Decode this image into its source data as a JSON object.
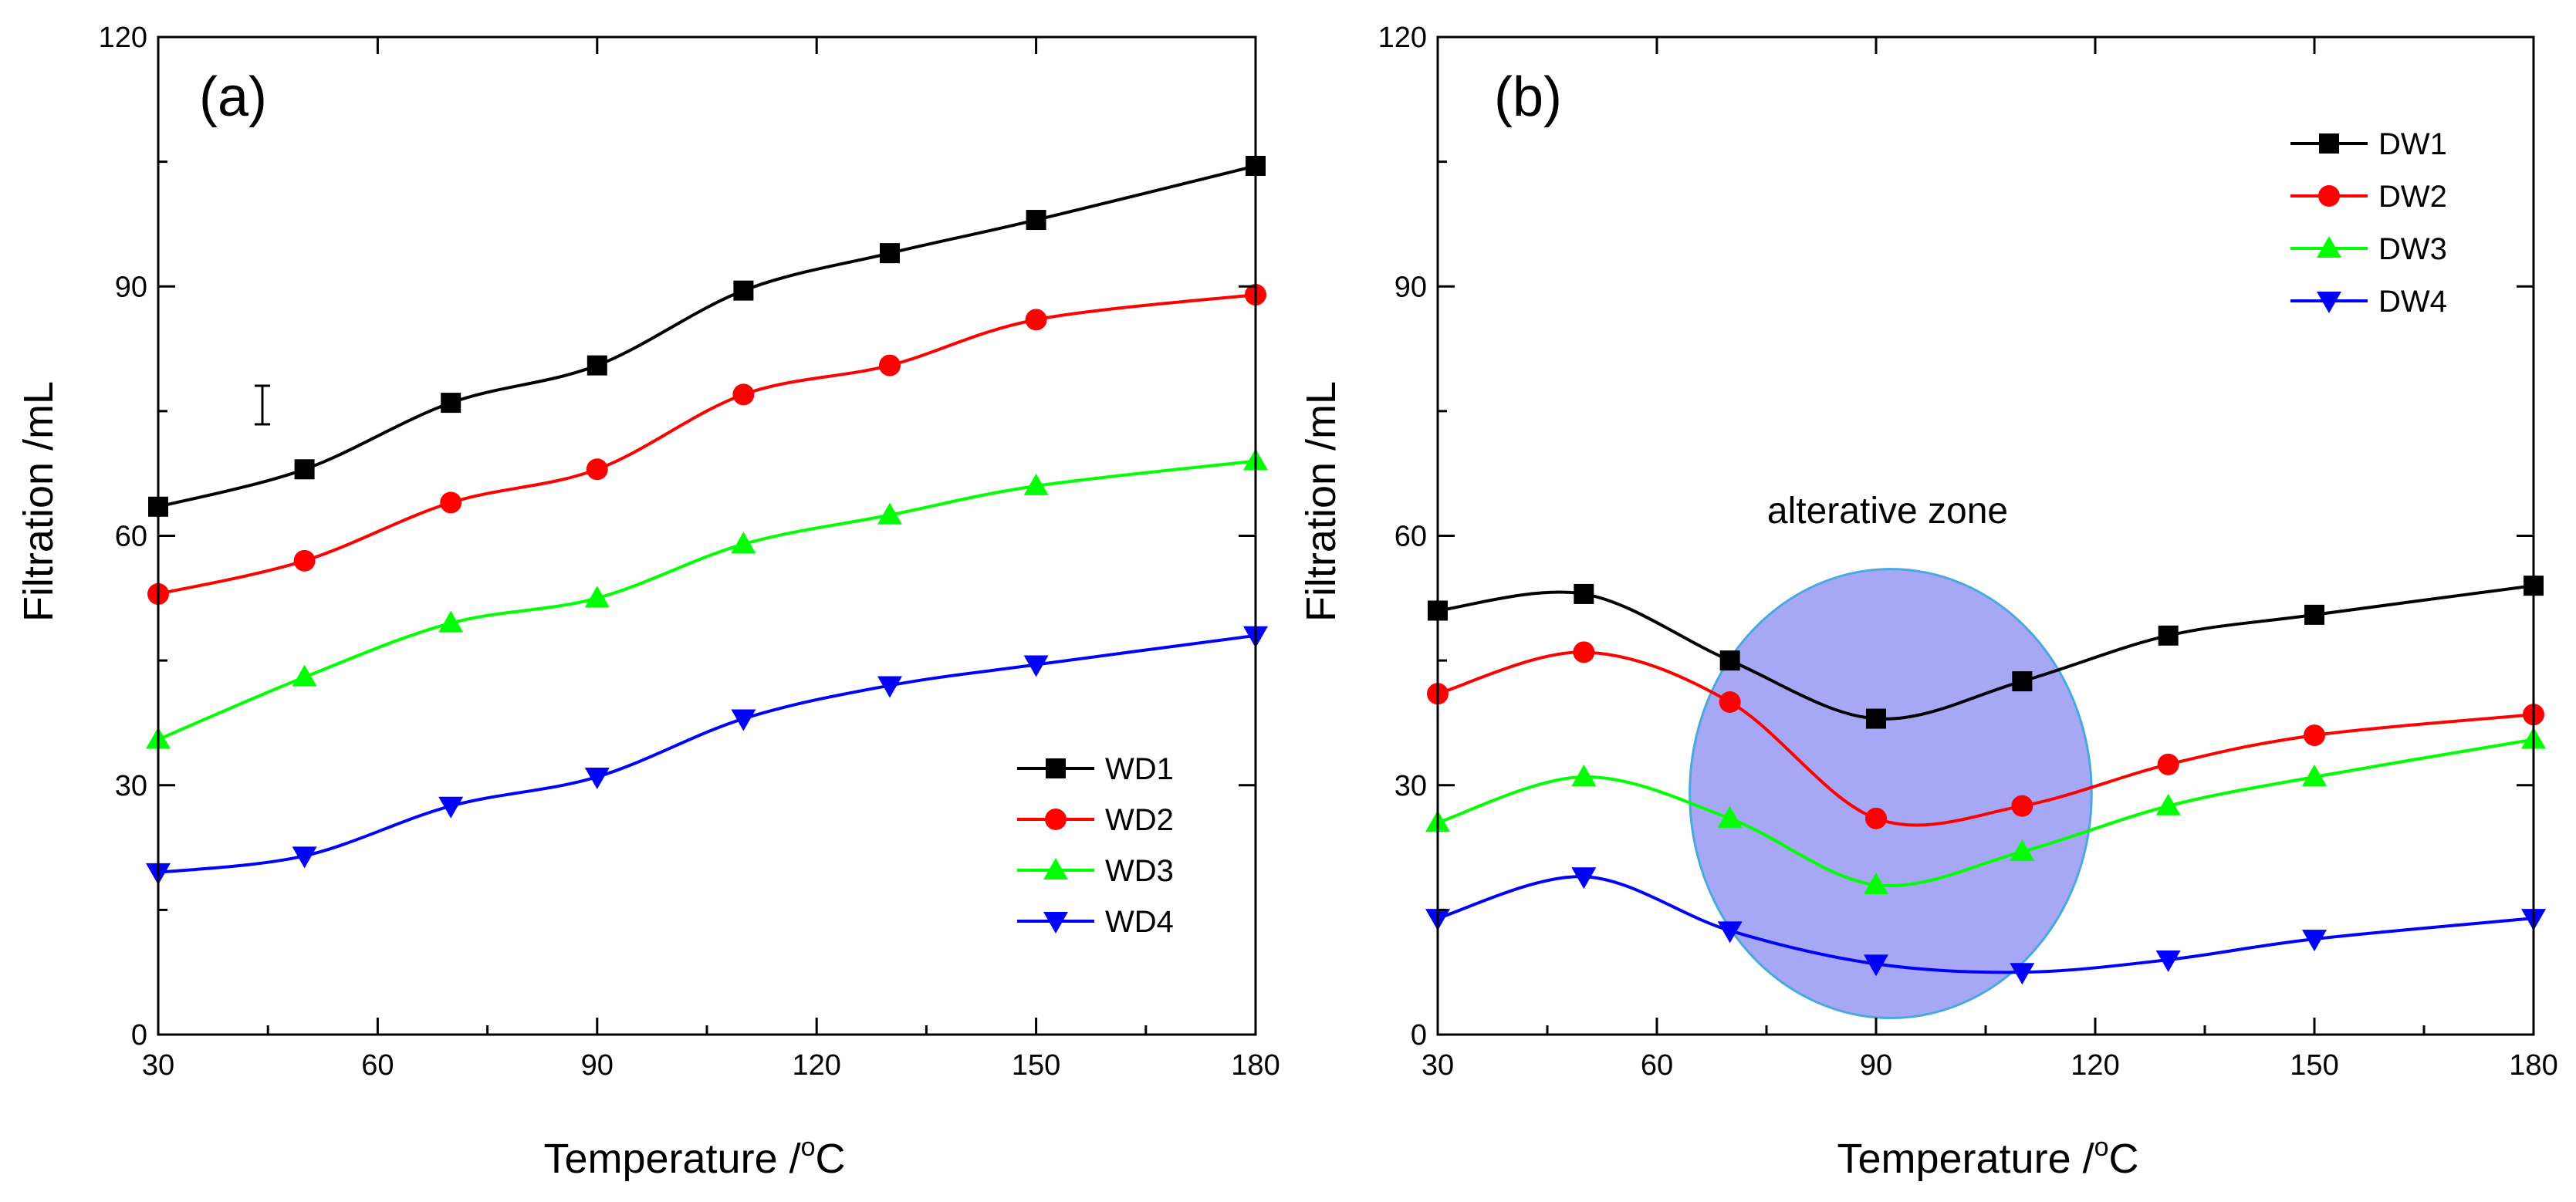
{
  "chart_data": [
    {
      "type": "line",
      "panel_label": "(a)",
      "x": [
        30,
        50,
        70,
        90,
        110,
        130,
        150,
        180
      ],
      "xlim": [
        30,
        180
      ],
      "ylim": [
        0,
        120
      ],
      "xticks": [
        "30",
        "60",
        "90",
        "120",
        "150",
        "180"
      ],
      "yticks": [
        "0",
        "30",
        "60",
        "90",
        "120"
      ],
      "xlabel_main": "Temperature /",
      "xlabel_sup": "o",
      "xlabel_unit": "C",
      "ylabel": "Filtration /mL",
      "legend_position": "bottom-right",
      "series": [
        {
          "name": "WD1",
          "color": "#000000",
          "marker": "square",
          "values": [
            63.5,
            68,
            76,
            80.5,
            89.5,
            94,
            98,
            104.5
          ]
        },
        {
          "name": "WD2",
          "color": "#ff0000",
          "marker": "circle",
          "values": [
            53,
            57,
            64,
            68,
            77,
            80.5,
            86,
            89
          ]
        },
        {
          "name": "WD3",
          "color": "#00ff00",
          "marker": "triangle-up",
          "values": [
            35.5,
            43,
            49.5,
            52.5,
            59,
            62.5,
            66,
            69
          ]
        },
        {
          "name": "WD4",
          "color": "#0000ff",
          "marker": "triangle-down",
          "values": [
            19.5,
            21.5,
            27.5,
            31,
            38,
            42,
            44.5,
            48
          ]
        }
      ]
    },
    {
      "type": "line",
      "panel_label": "(b)",
      "x": [
        30,
        50,
        70,
        90,
        110,
        130,
        150,
        180
      ],
      "xlim": [
        30,
        180
      ],
      "ylim": [
        0,
        120
      ],
      "xticks": [
        "30",
        "60",
        "90",
        "120",
        "150",
        "180"
      ],
      "yticks": [
        "0",
        "30",
        "60",
        "90",
        "120"
      ],
      "xlabel_main": "Temperature /",
      "xlabel_sup": "o",
      "xlabel_unit": "C",
      "ylabel": "Filtration /mL",
      "legend_position": "top-right",
      "annotation": {
        "text": "alterative zone",
        "color": "#a6a8f5",
        "stroke": "#4aa8e0",
        "center_x": 92,
        "center_y": 29,
        "rx_data": 27.5,
        "ry_data": 27
      },
      "series": [
        {
          "name": "DW1",
          "color": "#000000",
          "marker": "square",
          "values": [
            51,
            53,
            45,
            38,
            42.5,
            48,
            50.5,
            54
          ]
        },
        {
          "name": "DW2",
          "color": "#ff0000",
          "marker": "circle",
          "values": [
            41,
            46,
            40,
            26,
            27.5,
            32.5,
            36,
            38.5
          ]
        },
        {
          "name": "DW3",
          "color": "#00ff00",
          "marker": "triangle-up",
          "values": [
            25.5,
            31,
            26,
            18,
            22,
            27.5,
            31,
            35.5
          ]
        },
        {
          "name": "DW4",
          "color": "#0000ff",
          "marker": "triangle-down",
          "values": [
            14,
            19,
            12.5,
            8.5,
            7.5,
            9,
            11.5,
            14
          ]
        }
      ]
    }
  ]
}
